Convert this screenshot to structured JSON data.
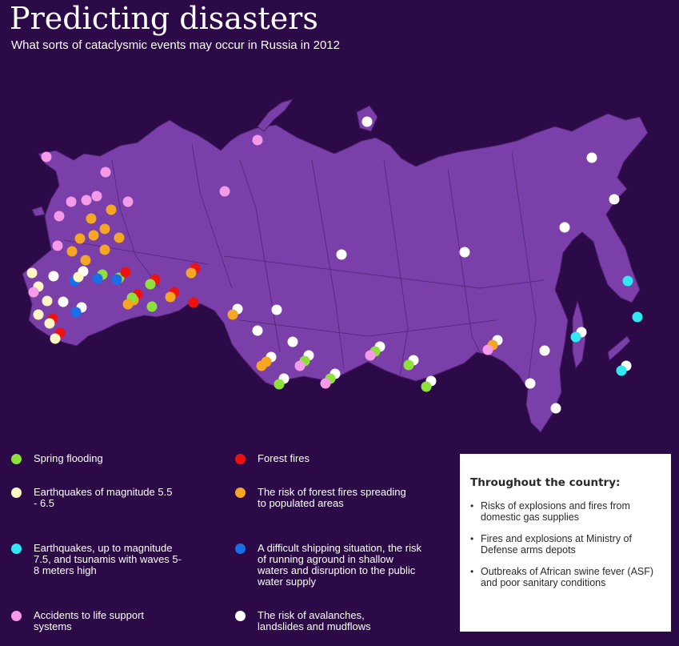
{
  "header": {
    "title": "Predicting disasters",
    "subtitle": "What sorts of cataclysmic events may occur in Russia in 2012"
  },
  "colors": {
    "background": "#2b0a47",
    "land": "#7a3fa8",
    "borders": "#4a1d6c",
    "spring_flooding": "#8ee03a",
    "forest_fires": "#ee1111",
    "earthquakes_moderate": "#fff6c4",
    "forest_fires_populated": "#f5a623",
    "earthquakes_tsunami": "#2fe8f0",
    "shipping": "#1a6fe8",
    "life_support": "#f59ae8",
    "avalanches": "#ffffff"
  },
  "legend": [
    {
      "key": "spring_flooding",
      "label": "Spring flooding"
    },
    {
      "key": "forest_fires",
      "label": "Forest fires"
    },
    {
      "key": "earthquakes_moderate",
      "label": "Earthquakes of magnitude 5.5 - 6.5"
    },
    {
      "key": "forest_fires_populated",
      "label": "The risk of forest fires spreading to populated areas"
    },
    {
      "key": "earthquakes_tsunami",
      "label": "Earthquakes, up to magnitude 7.5, and tsunamis with waves 5-8 meters high"
    },
    {
      "key": "shipping",
      "label": "A difficult shipping situation, the risk of running aground in shallow waters and disruption to the public water supply"
    },
    {
      "key": "life_support",
      "label": "Accidents to life support systems"
    },
    {
      "key": "avalanches",
      "label": "The risk of avalanches, landslides and mudflows"
    }
  ],
  "throughout": {
    "title": "Throughout the country:",
    "items": [
      "Risks of explosions and fires from domestic gas supplies",
      "Fires and explosions at Ministry of Defense arms depots",
      "Outbreaks of African swine fever (ASF) and poor sanitary conditions"
    ]
  }
}
